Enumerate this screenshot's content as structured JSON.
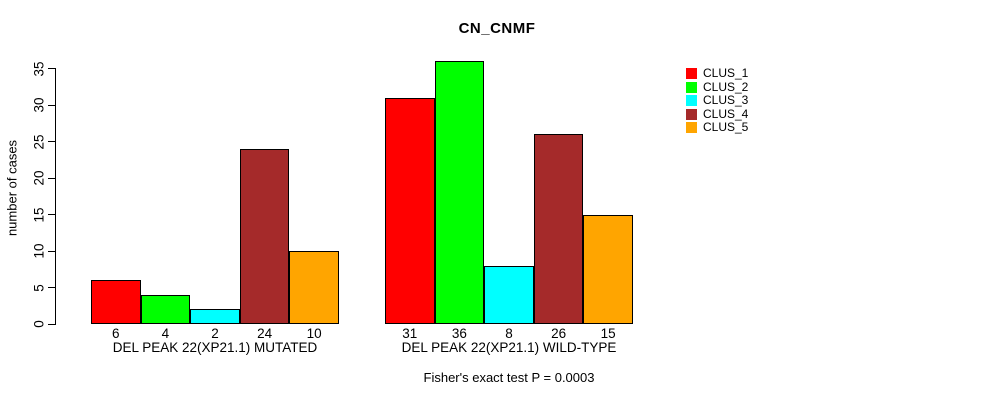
{
  "title": "CN_CNMF",
  "chart_data": {
    "type": "bar",
    "title": "CN_CNMF",
    "xlabel": "",
    "ylabel": "number of cases",
    "ylim": [
      0,
      35
    ],
    "yticks": [
      0,
      5,
      10,
      15,
      20,
      25,
      30,
      35
    ],
    "grid": false,
    "legend_position": "top-right",
    "bar_value_labels": true,
    "categories": [
      "DEL PEAK 22(XP21.1) MUTATED",
      "DEL PEAK 22(XP21.1) WILD-TYPE"
    ],
    "series": [
      {
        "name": "CLUS_1",
        "color": "#FF0000",
        "values": [
          6,
          31
        ]
      },
      {
        "name": "CLUS_2",
        "color": "#00FF00",
        "values": [
          4,
          36
        ]
      },
      {
        "name": "CLUS_3",
        "color": "#00FFFF",
        "values": [
          2,
          8
        ]
      },
      {
        "name": "CLUS_4",
        "color": "#A52A2A",
        "values": [
          24,
          26
        ]
      },
      {
        "name": "CLUS_5",
        "color": "#FFA500",
        "values": [
          10,
          15
        ]
      }
    ],
    "annotation": "Fisher's exact test P = 0.0003"
  }
}
